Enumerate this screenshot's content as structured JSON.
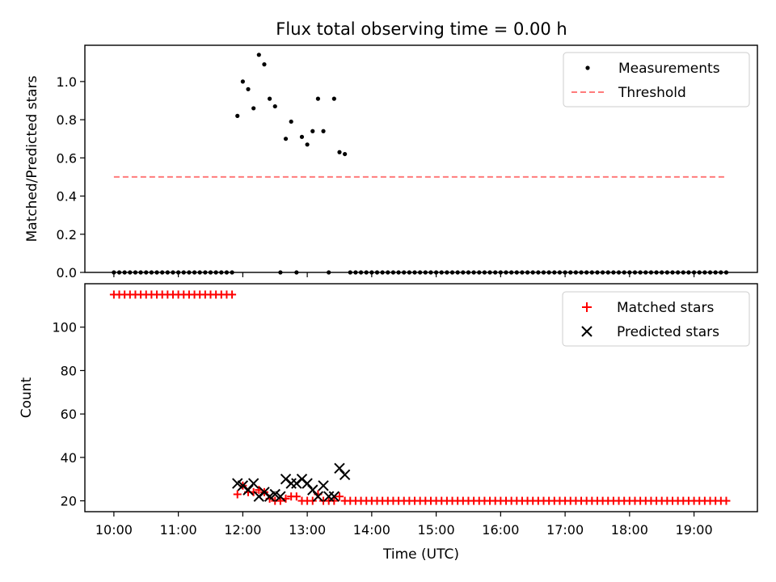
{
  "chart_data": [
    {
      "type": "scatter",
      "title": "Flux total observing time = 0.00 h",
      "xlabel": "",
      "ylabel": "Matched/Predicted stars",
      "ylim": [
        0,
        1.19
      ],
      "yticks": [
        "0.0",
        "0.2",
        "0.4",
        "0.6",
        "0.8",
        "1.0"
      ],
      "grid": false,
      "legend_position": "top-right",
      "series": [
        {
          "name": "Measurements",
          "marker": "dot",
          "color": "#000000",
          "points": [
            [
              "10:00",
              0
            ],
            [
              "10:05",
              0
            ],
            [
              "10:10",
              0
            ],
            [
              "10:15",
              0
            ],
            [
              "10:20",
              0
            ],
            [
              "10:25",
              0
            ],
            [
              "10:30",
              0
            ],
            [
              "10:35",
              0
            ],
            [
              "10:40",
              0
            ],
            [
              "10:45",
              0
            ],
            [
              "10:50",
              0
            ],
            [
              "10:55",
              0
            ],
            [
              "11:00",
              0
            ],
            [
              "11:05",
              0
            ],
            [
              "11:10",
              0
            ],
            [
              "11:15",
              0
            ],
            [
              "11:20",
              0
            ],
            [
              "11:25",
              0
            ],
            [
              "11:30",
              0
            ],
            [
              "11:35",
              0
            ],
            [
              "11:40",
              0
            ],
            [
              "11:45",
              0
            ],
            [
              "11:50",
              0
            ],
            [
              "11:55",
              0.82
            ],
            [
              "12:00",
              1.0
            ],
            [
              "12:05",
              0.96
            ],
            [
              "12:10",
              0.86
            ],
            [
              "12:15",
              1.14
            ],
            [
              "12:20",
              1.09
            ],
            [
              "12:25",
              0.91
            ],
            [
              "12:30",
              0.87
            ],
            [
              "12:35",
              0
            ],
            [
              "12:40",
              0.7
            ],
            [
              "12:45",
              0.79
            ],
            [
              "12:50",
              0
            ],
            [
              "12:55",
              0.71
            ],
            [
              "13:00",
              0.67
            ],
            [
              "13:05",
              0.74
            ],
            [
              "13:10",
              0.91
            ],
            [
              "13:15",
              0.74
            ],
            [
              "13:20",
              0
            ],
            [
              "13:25",
              0.91
            ],
            [
              "13:30",
              0.63
            ],
            [
              "13:35",
              0.62
            ],
            [
              "13:40",
              0
            ],
            [
              "13:45",
              0
            ],
            [
              "13:50",
              0
            ],
            [
              "13:55",
              0
            ],
            [
              "14:00",
              0
            ],
            [
              "14:05",
              0
            ],
            [
              "14:10",
              0
            ],
            [
              "14:15",
              0
            ],
            [
              "14:20",
              0
            ],
            [
              "14:25",
              0
            ],
            [
              "14:30",
              0
            ],
            [
              "14:35",
              0
            ],
            [
              "14:40",
              0
            ],
            [
              "14:45",
              0
            ],
            [
              "14:50",
              0
            ],
            [
              "14:55",
              0
            ],
            [
              "15:00",
              0
            ],
            [
              "15:05",
              0
            ],
            [
              "15:10",
              0
            ],
            [
              "15:15",
              0
            ],
            [
              "15:20",
              0
            ],
            [
              "15:25",
              0
            ],
            [
              "15:30",
              0
            ],
            [
              "15:35",
              0
            ],
            [
              "15:40",
              0
            ],
            [
              "15:45",
              0
            ],
            [
              "15:50",
              0
            ],
            [
              "15:55",
              0
            ],
            [
              "16:00",
              0
            ],
            [
              "16:05",
              0
            ],
            [
              "16:10",
              0
            ],
            [
              "16:15",
              0
            ],
            [
              "16:20",
              0
            ],
            [
              "16:25",
              0
            ],
            [
              "16:30",
              0
            ],
            [
              "16:35",
              0
            ],
            [
              "16:40",
              0
            ],
            [
              "16:45",
              0
            ],
            [
              "16:50",
              0
            ],
            [
              "16:55",
              0
            ],
            [
              "17:00",
              0
            ],
            [
              "17:05",
              0
            ],
            [
              "17:10",
              0
            ],
            [
              "17:15",
              0
            ],
            [
              "17:20",
              0
            ],
            [
              "17:25",
              0
            ],
            [
              "17:30",
              0
            ],
            [
              "17:35",
              0
            ],
            [
              "17:40",
              0
            ],
            [
              "17:45",
              0
            ],
            [
              "17:50",
              0
            ],
            [
              "17:55",
              0
            ],
            [
              "18:00",
              0
            ],
            [
              "18:05",
              0
            ],
            [
              "18:10",
              0
            ],
            [
              "18:15",
              0
            ],
            [
              "18:20",
              0
            ],
            [
              "18:25",
              0
            ],
            [
              "18:30",
              0
            ],
            [
              "18:35",
              0
            ],
            [
              "18:40",
              0
            ],
            [
              "18:45",
              0
            ],
            [
              "18:50",
              0
            ],
            [
              "18:55",
              0
            ],
            [
              "19:00",
              0
            ],
            [
              "19:05",
              0
            ],
            [
              "19:10",
              0
            ],
            [
              "19:15",
              0
            ],
            [
              "19:20",
              0
            ],
            [
              "19:25",
              0
            ],
            [
              "19:30",
              0
            ]
          ]
        },
        {
          "name": "Threshold",
          "marker": "dashed-line",
          "color": "#ff7b7b",
          "points": [
            [
              "10:00",
              0.5
            ],
            [
              "19:30",
              0.5
            ]
          ]
        }
      ]
    },
    {
      "type": "scatter",
      "title": "",
      "xlabel": "Time (UTC)",
      "ylabel": "Count",
      "xlim": [
        "09:33",
        "19:59"
      ],
      "ylim": [
        15,
        120
      ],
      "xticks": [
        "10:00",
        "11:00",
        "12:00",
        "13:00",
        "14:00",
        "15:00",
        "16:00",
        "17:00",
        "18:00",
        "19:00"
      ],
      "yticks": [
        "20",
        "40",
        "60",
        "80",
        "100"
      ],
      "grid": false,
      "legend_position": "top-right",
      "series": [
        {
          "name": "Matched stars",
          "marker": "plus",
          "color": "#ff0000",
          "points": [
            [
              "10:00",
              115
            ],
            [
              "10:05",
              115
            ],
            [
              "10:10",
              115
            ],
            [
              "10:15",
              115
            ],
            [
              "10:20",
              115
            ],
            [
              "10:25",
              115
            ],
            [
              "10:30",
              115
            ],
            [
              "10:35",
              115
            ],
            [
              "10:40",
              115
            ],
            [
              "10:45",
              115
            ],
            [
              "10:50",
              115
            ],
            [
              "10:55",
              115
            ],
            [
              "11:00",
              115
            ],
            [
              "11:05",
              115
            ],
            [
              "11:10",
              115
            ],
            [
              "11:15",
              115
            ],
            [
              "11:20",
              115
            ],
            [
              "11:25",
              115
            ],
            [
              "11:30",
              115
            ],
            [
              "11:35",
              115
            ],
            [
              "11:40",
              115
            ],
            [
              "11:45",
              115
            ],
            [
              "11:50",
              115
            ],
            [
              "11:55",
              23
            ],
            [
              "12:00",
              27
            ],
            [
              "12:05",
              24
            ],
            [
              "12:10",
              24
            ],
            [
              "12:15",
              25
            ],
            [
              "12:20",
              24
            ],
            [
              "12:25",
              21
            ],
            [
              "12:30",
              20
            ],
            [
              "12:35",
              20
            ],
            [
              "12:40",
              21
            ],
            [
              "12:45",
              22
            ],
            [
              "12:50",
              22
            ],
            [
              "12:55",
              20
            ],
            [
              "13:00",
              20
            ],
            [
              "13:05",
              20
            ],
            [
              "13:10",
              23
            ],
            [
              "13:15",
              20
            ],
            [
              "13:20",
              20
            ],
            [
              "13:25",
              20
            ],
            [
              "13:30",
              22
            ],
            [
              "13:35",
              20
            ],
            [
              "13:40",
              20
            ],
            [
              "13:45",
              20
            ],
            [
              "13:50",
              20
            ],
            [
              "13:55",
              20
            ],
            [
              "14:00",
              20
            ],
            [
              "14:05",
              20
            ],
            [
              "14:10",
              20
            ],
            [
              "14:15",
              20
            ],
            [
              "14:20",
              20
            ],
            [
              "14:25",
              20
            ],
            [
              "14:30",
              20
            ],
            [
              "14:35",
              20
            ],
            [
              "14:40",
              20
            ],
            [
              "14:45",
              20
            ],
            [
              "14:50",
              20
            ],
            [
              "14:55",
              20
            ],
            [
              "15:00",
              20
            ],
            [
              "15:05",
              20
            ],
            [
              "15:10",
              20
            ],
            [
              "15:15",
              20
            ],
            [
              "15:20",
              20
            ],
            [
              "15:25",
              20
            ],
            [
              "15:30",
              20
            ],
            [
              "15:35",
              20
            ],
            [
              "15:40",
              20
            ],
            [
              "15:45",
              20
            ],
            [
              "15:50",
              20
            ],
            [
              "15:55",
              20
            ],
            [
              "16:00",
              20
            ],
            [
              "16:05",
              20
            ],
            [
              "16:10",
              20
            ],
            [
              "16:15",
              20
            ],
            [
              "16:20",
              20
            ],
            [
              "16:25",
              20
            ],
            [
              "16:30",
              20
            ],
            [
              "16:35",
              20
            ],
            [
              "16:40",
              20
            ],
            [
              "16:45",
              20
            ],
            [
              "16:50",
              20
            ],
            [
              "16:55",
              20
            ],
            [
              "17:00",
              20
            ],
            [
              "17:05",
              20
            ],
            [
              "17:10",
              20
            ],
            [
              "17:15",
              20
            ],
            [
              "17:20",
              20
            ],
            [
              "17:25",
              20
            ],
            [
              "17:30",
              20
            ],
            [
              "17:35",
              20
            ],
            [
              "17:40",
              20
            ],
            [
              "17:45",
              20
            ],
            [
              "17:50",
              20
            ],
            [
              "17:55",
              20
            ],
            [
              "18:00",
              20
            ],
            [
              "18:05",
              20
            ],
            [
              "18:10",
              20
            ],
            [
              "18:15",
              20
            ],
            [
              "18:20",
              20
            ],
            [
              "18:25",
              20
            ],
            [
              "18:30",
              20
            ],
            [
              "18:35",
              20
            ],
            [
              "18:40",
              20
            ],
            [
              "18:45",
              20
            ],
            [
              "18:50",
              20
            ],
            [
              "18:55",
              20
            ],
            [
              "19:00",
              20
            ],
            [
              "19:05",
              20
            ],
            [
              "19:10",
              20
            ],
            [
              "19:15",
              20
            ],
            [
              "19:20",
              20
            ],
            [
              "19:25",
              20
            ],
            [
              "19:30",
              20
            ]
          ]
        },
        {
          "name": "Predicted stars",
          "marker": "x",
          "color": "#000000",
          "points": [
            [
              "11:55",
              28
            ],
            [
              "12:00",
              27
            ],
            [
              "12:05",
              25
            ],
            [
              "12:10",
              28
            ],
            [
              "12:15",
              22
            ],
            [
              "12:20",
              24
            ],
            [
              "12:25",
              22
            ],
            [
              "12:30",
              23
            ],
            [
              "12:35",
              22
            ],
            [
              "12:40",
              30
            ],
            [
              "12:45",
              28
            ],
            [
              "12:50",
              28
            ],
            [
              "12:55",
              30
            ],
            [
              "13:00",
              28
            ],
            [
              "13:05",
              25
            ],
            [
              "13:10",
              22
            ],
            [
              "13:15",
              27
            ],
            [
              "13:20",
              22
            ],
            [
              "13:25",
              22
            ],
            [
              "13:30",
              35
            ],
            [
              "13:35",
              32
            ]
          ]
        }
      ]
    }
  ]
}
